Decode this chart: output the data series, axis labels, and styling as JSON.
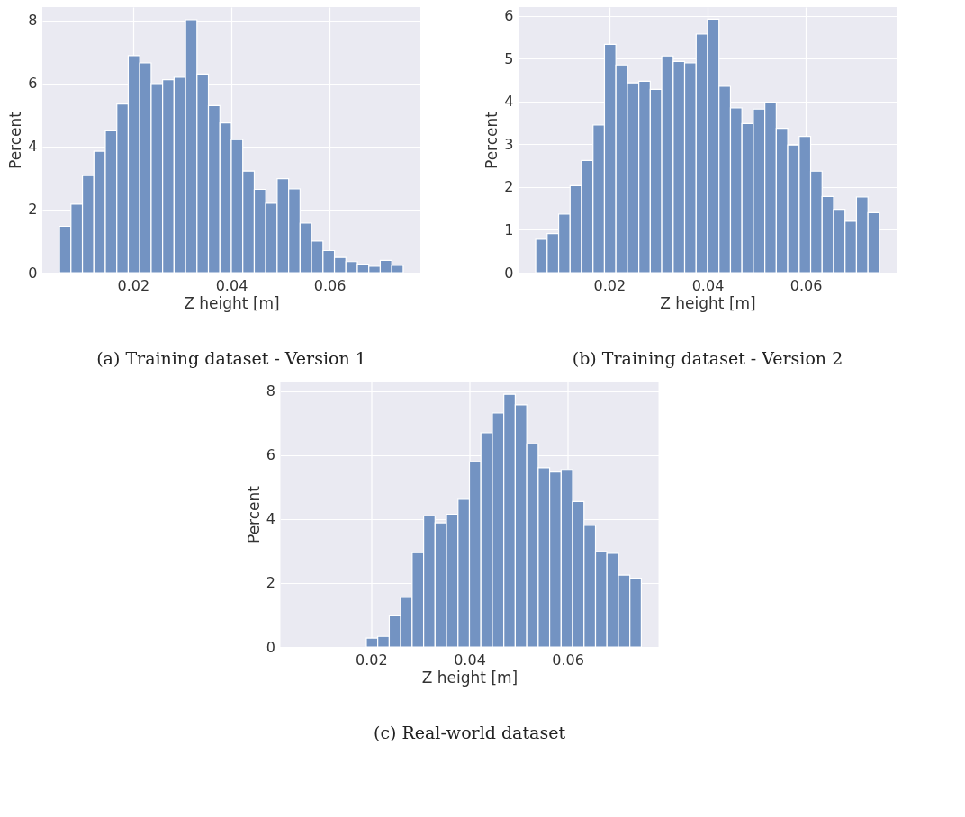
{
  "chart_data": [
    {
      "type": "histogram",
      "title": "(a) Training dataset - Version 1",
      "xlabel": "Z height [m]",
      "ylabel": "Percent",
      "color": "#7393c2",
      "bins": [
        0.005,
        0.00733,
        0.00967,
        0.012,
        0.01433,
        0.01667,
        0.019,
        0.02133,
        0.02367,
        0.026,
        0.02833,
        0.03067,
        0.033,
        0.03533,
        0.03767,
        0.04,
        0.04233,
        0.04467,
        0.047,
        0.04933,
        0.05167,
        0.054,
        0.05633,
        0.05867,
        0.061,
        0.06333,
        0.06567,
        0.068,
        0.07033,
        0.07267,
        0.075
      ],
      "values": [
        1.47,
        2.17,
        3.08,
        3.85,
        4.5,
        5.35,
        6.88,
        6.65,
        6.0,
        6.12,
        6.2,
        8.02,
        6.3,
        5.3,
        4.75,
        4.22,
        3.22,
        2.64,
        2.2,
        2.98,
        2.66,
        1.57,
        1.0,
        0.7,
        0.48,
        0.35,
        0.27,
        0.2,
        0.39,
        0.23
      ],
      "xlim": [
        0.0015,
        0.0785
      ],
      "xticks": [
        0.02,
        0.04,
        0.06
      ],
      "ylim": [
        0,
        8.42
      ],
      "yticks": [
        0,
        2,
        4,
        6,
        8
      ],
      "grid": true
    },
    {
      "type": "histogram",
      "title": "(b) Training dataset - Version 2",
      "xlabel": "Z height [m]",
      "ylabel": "Percent",
      "color": "#7393c2",
      "bins": [
        0.005,
        0.00733,
        0.00967,
        0.012,
        0.01433,
        0.01667,
        0.019,
        0.02133,
        0.02367,
        0.026,
        0.02833,
        0.03067,
        0.033,
        0.03533,
        0.03767,
        0.04,
        0.04233,
        0.04467,
        0.047,
        0.04933,
        0.05167,
        0.054,
        0.05633,
        0.05867,
        0.061,
        0.06333,
        0.06567,
        0.068,
        0.07033,
        0.07267,
        0.075
      ],
      "values": [
        0.78,
        0.91,
        1.37,
        2.03,
        2.62,
        3.45,
        5.33,
        4.85,
        4.43,
        4.47,
        4.28,
        5.06,
        4.93,
        4.9,
        5.57,
        5.92,
        4.35,
        3.85,
        3.48,
        3.82,
        3.98,
        3.37,
        2.98,
        3.18,
        2.37,
        1.78,
        1.48,
        1.2,
        1.77,
        1.4
      ],
      "xlim": [
        0.0015,
        0.0785
      ],
      "xticks": [
        0.02,
        0.04,
        0.06
      ],
      "ylim": [
        0,
        6.2
      ],
      "yticks": [
        0,
        1,
        2,
        3,
        4,
        5,
        6
      ],
      "grid": true
    },
    {
      "type": "histogram",
      "title": "(c) Real-world dataset",
      "xlabel": "Z height [m]",
      "ylabel": "Percent",
      "color": "#7393c2",
      "bins": [
        0.019,
        0.02133,
        0.02367,
        0.026,
        0.02833,
        0.03067,
        0.033,
        0.03533,
        0.03767,
        0.04,
        0.04233,
        0.04467,
        0.047,
        0.04933,
        0.05167,
        0.054,
        0.05633,
        0.05867,
        0.061,
        0.06333,
        0.06567,
        0.068,
        0.07033,
        0.07267,
        0.075
      ],
      "values": [
        0.28,
        0.33,
        0.97,
        1.55,
        2.95,
        4.1,
        3.88,
        4.15,
        4.62,
        5.8,
        6.7,
        7.32,
        7.9,
        7.57,
        6.35,
        5.6,
        5.47,
        5.55,
        4.55,
        3.8,
        2.98,
        2.93,
        2.25,
        2.15
      ],
      "xlim": [
        0.0015,
        0.0785
      ],
      "xticks": [
        0.02,
        0.04,
        0.06
      ],
      "ylim": [
        0,
        8.3
      ],
      "yticks": [
        0,
        2,
        4,
        6,
        8
      ],
      "grid": true
    }
  ]
}
